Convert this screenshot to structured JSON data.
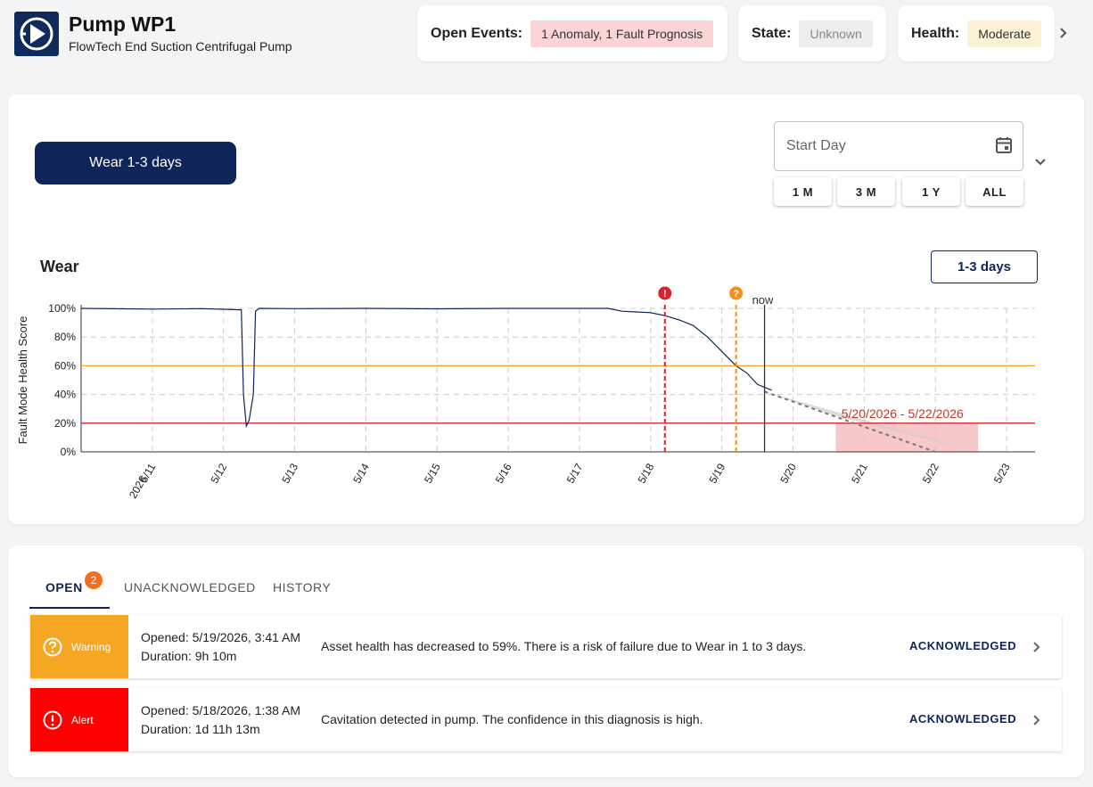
{
  "header": {
    "title": "Pump WP1",
    "subtitle": "FlowTech End Suction Centrifugal Pump",
    "open_events_label": "Open Events:",
    "open_events_value": "1 Anomaly, 1 Fault Prognosis",
    "state_label": "State:",
    "state_value": "Unknown",
    "health_label": "Health:",
    "health_value": "Moderate"
  },
  "fault_selector": {
    "label": "Wear 1-3 days"
  },
  "date_filter": {
    "placeholder": "Start Day",
    "ranges": [
      "1 M",
      "3 M",
      "1 Y",
      "ALL"
    ]
  },
  "chart_header": {
    "title": "Wear",
    "badge": "1-3 days"
  },
  "chart_data": {
    "type": "line",
    "ylabel": "Fault Mode Health Score",
    "xlabel": "",
    "ylim": [
      0,
      100
    ],
    "y_ticks": [
      "0%",
      "20%",
      "40%",
      "60%",
      "80%",
      "100%"
    ],
    "x_ticks": [
      "5/11",
      "5/12",
      "5/13",
      "5/14",
      "5/15",
      "5/16",
      "5/17",
      "5/18",
      "5/19",
      "5/20",
      "5/21",
      "5/22",
      "5/23"
    ],
    "x_year_label": "2026",
    "thresholds": [
      {
        "value": 60,
        "color": "#f5a623"
      },
      {
        "value": 20,
        "color": "#d9232e"
      }
    ],
    "series": [
      {
        "color": "#0f2459",
        "points": [
          [
            10.0,
            100
          ],
          [
            11.0,
            99.5
          ],
          [
            11.7,
            99.8
          ],
          [
            12.25,
            99
          ],
          [
            12.28,
            40
          ],
          [
            12.32,
            18
          ],
          [
            12.36,
            22
          ],
          [
            12.42,
            40
          ],
          [
            12.45,
            98
          ],
          [
            12.5,
            100
          ],
          [
            13.0,
            99.8
          ],
          [
            14.0,
            100
          ],
          [
            15.0,
            99.7
          ],
          [
            16.0,
            100
          ],
          [
            17.0,
            100
          ],
          [
            17.4,
            100
          ],
          [
            17.6,
            98
          ],
          [
            17.8,
            97.5
          ],
          [
            18.0,
            97
          ],
          [
            18.2,
            95
          ],
          [
            18.4,
            92
          ],
          [
            18.6,
            88
          ],
          [
            18.8,
            80
          ],
          [
            19.0,
            70
          ],
          [
            19.2,
            60
          ],
          [
            19.35,
            55
          ],
          [
            19.5,
            47
          ],
          [
            19.7,
            43
          ]
        ]
      }
    ],
    "markers": [
      {
        "type": "alert",
        "x": 18.2,
        "color": "#d9232e"
      },
      {
        "type": "warning",
        "x": 19.2,
        "color": "#f5901e"
      }
    ],
    "now": {
      "label": "now",
      "x": 19.6
    },
    "forecast": {
      "start": [
        19.6,
        42
      ],
      "end_x": 22.6,
      "band": "5/20/2026 - 5/22/2026",
      "band_x": [
        20.6,
        22.6
      ],
      "band_color": "#f8c8c8",
      "cone_color": "#cfcfcf"
    }
  },
  "tabs": [
    {
      "label": "OPEN",
      "active": true,
      "badge": "2"
    },
    {
      "label": "UNACKNOWLEDGED"
    },
    {
      "label": "HISTORY"
    }
  ],
  "events": [
    {
      "severity": "Warning",
      "color": "#f5a623",
      "opened": "Opened: 5/19/2026, 3:41 AM",
      "duration": "Duration: 9h 10m",
      "description": "Asset health has decreased to 59%. There is a risk of failure due to Wear in 1 to 3 days.",
      "status": "ACKNOWLEDGED"
    },
    {
      "severity": "Alert",
      "color": "#ff0000",
      "opened": "Opened: 5/18/2026, 1:38 AM",
      "duration": "Duration: 1d 11h 13m",
      "description": "Cavitation detected in pump. The confidence in this diagnosis is high.",
      "status": "ACKNOWLEDGED"
    }
  ]
}
